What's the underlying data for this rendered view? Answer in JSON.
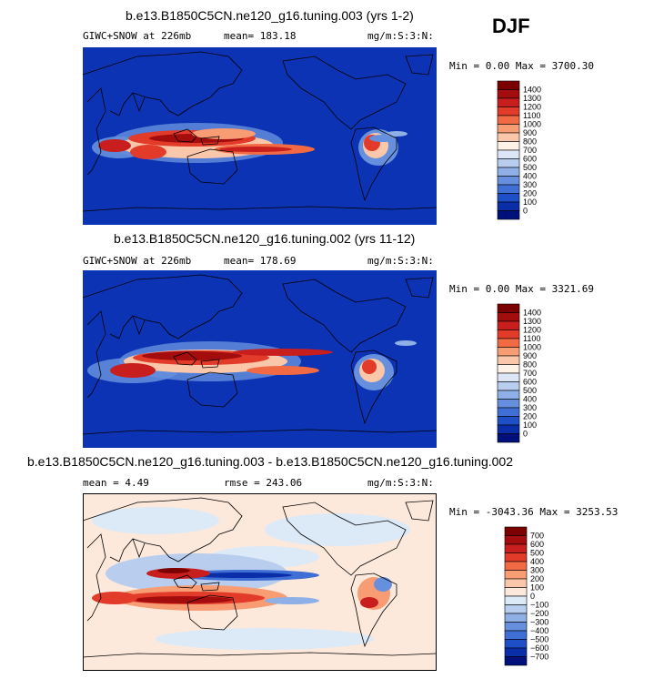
{
  "season": "DJF",
  "panels": [
    {
      "title": "b.e13.B1850C5CN.ne120_g16.tuning.003 (yrs 1-2)",
      "left_label": "GIWC+SNOW at 226mb",
      "mean_text": "mean= 183.18",
      "units": "mg/m:S:3:N:",
      "minmax": "Min =   0.00 Max = 3700.30"
    },
    {
      "title": "b.e13.B1850C5CN.ne120_g16.tuning.002 (yrs 11-12)",
      "left_label": "GIWC+SNOW at 226mb",
      "mean_text": "mean= 178.69",
      "units": "mg/m:S:3:N:",
      "minmax": "Min =   0.00 Max = 3321.69"
    },
    {
      "title": "b.e13.B1850C5CN.ne120_g16.tuning.003 - b.e13.B1850C5CN.ne120_g16.tuning.002",
      "left_label": "mean =    4.49",
      "mean_text": "rmse = 243.06",
      "units": "mg/m:S:3:N:",
      "minmax": "Min = -3043.36 Max = 3253.53"
    }
  ],
  "chart_data": [
    {
      "type": "heatmap",
      "title": "b.e13.B1850C5CN.ne120_g16.tuning.003 (yrs 1-2)",
      "variable": "GIWC+SNOW at 226mb",
      "mean": 183.18,
      "units": "mg/m:S:3:N:",
      "min": 0.0,
      "max": 3700.3,
      "colorbar": {
        "levels": [
          "1400",
          "1300",
          "1200",
          "1100",
          "1000",
          "900",
          "800",
          "700",
          "600",
          "500",
          "400",
          "300",
          "200",
          "100",
          "0"
        ],
        "colors": [
          "#7b0000",
          "#a30d0d",
          "#c81e1e",
          "#e33b2a",
          "#f26a44",
          "#f89c73",
          "#fbc7aa",
          "#fff2e6",
          "#dde6f6",
          "#b9cdee",
          "#8fb0e6",
          "#6690dd",
          "#3f6fd4",
          "#1f4fc6",
          "#0a2ea8",
          "#00107a"
        ]
      }
    },
    {
      "type": "heatmap",
      "title": "b.e13.B1850C5CN.ne120_g16.tuning.002 (yrs 11-12)",
      "variable": "GIWC+SNOW at 226mb",
      "mean": 178.69,
      "units": "mg/m:S:3:N:",
      "min": 0.0,
      "max": 3321.69,
      "colorbar": {
        "levels": [
          "1400",
          "1300",
          "1200",
          "1100",
          "1000",
          "900",
          "800",
          "700",
          "600",
          "500",
          "400",
          "300",
          "200",
          "100",
          "0"
        ],
        "colors": [
          "#7b0000",
          "#a30d0d",
          "#c81e1e",
          "#e33b2a",
          "#f26a44",
          "#f89c73",
          "#fbc7aa",
          "#fff2e6",
          "#dde6f6",
          "#b9cdee",
          "#8fb0e6",
          "#6690dd",
          "#3f6fd4",
          "#1f4fc6",
          "#0a2ea8",
          "#00107a"
        ]
      }
    },
    {
      "type": "heatmap",
      "title": "b.e13.B1850C5CN.ne120_g16.tuning.003 - b.e13.B1850C5CN.ne120_g16.tuning.002",
      "mean": 4.49,
      "rmse": 243.06,
      "units": "mg/m:S:3:N:",
      "min": -3043.36,
      "max": 3253.53,
      "colorbar": {
        "levels": [
          "700",
          "600",
          "500",
          "400",
          "300",
          "200",
          "100",
          "0",
          "−100",
          "−200",
          "−300",
          "−400",
          "−500",
          "−600",
          "−700"
        ],
        "colors": [
          "#7b0000",
          "#a30d0d",
          "#c81e1e",
          "#e33b2a",
          "#f26a44",
          "#f89c73",
          "#fbc7aa",
          "#fde9dc",
          "#dce9f7",
          "#b9cdee",
          "#8fb0e6",
          "#6690dd",
          "#3f6fd4",
          "#1f4fc6",
          "#0a2ea8",
          "#00107a"
        ]
      }
    }
  ]
}
